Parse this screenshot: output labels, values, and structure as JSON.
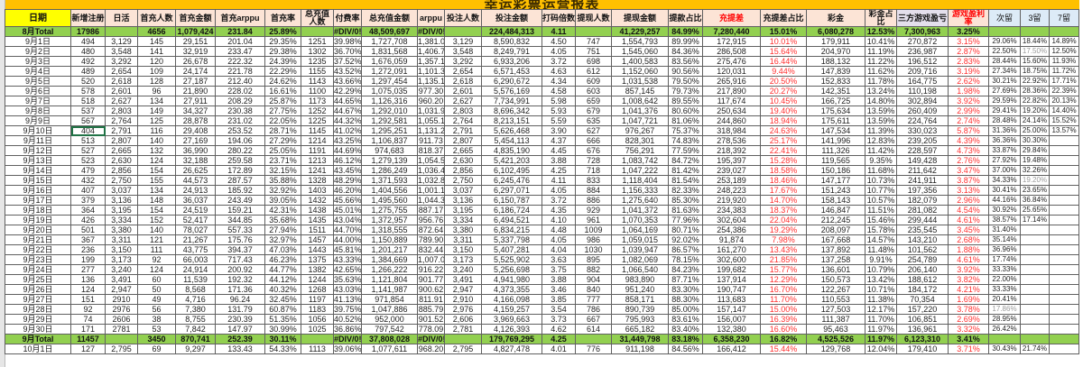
{
  "title": "幸运彩票运营报表",
  "headers": [
    "日期",
    "新增注册",
    "日活",
    "首充人数",
    "首充金额",
    "首充arppu",
    "首充率",
    "总充值人数",
    "付费率",
    "总充值金额",
    "arppu",
    "投注人数",
    "投注金额",
    "打码倍数",
    "提现人数",
    "提现金额",
    "提款占比",
    "充提差",
    "充提差占比",
    "彩金",
    "彩金占比",
    "三方游戏盈亏",
    "游戏盈利率",
    "次留",
    "3留",
    "7留"
  ],
  "colors": {
    "title_band": "#FFC000",
    "header": "#FCE4D6",
    "date_header": "#FFFF00",
    "total_row": "#92D050",
    "negative_red": "#FF3030",
    "retention_header": "#DDEBF7"
  },
  "rows": [
    [
      "8月Total",
      "17986",
      "",
      "4656",
      "1,079,424",
      "231.84",
      "25.89%",
      "",
      "#DIV/0!",
      "48,509,697",
      "#DIV/0!",
      "",
      "224,484,313",
      "4.11",
      "",
      "41,229,257",
      "84.99%",
      "7,280,440",
      "15.01%",
      "6,080,278",
      "12.53%",
      "7,300,963",
      "3.25%",
      "",
      "",
      ""
    ],
    [
      "9月1日",
      "494",
      "3,129",
      "145",
      "29,151",
      "201.04",
      "29.35%",
      "1251",
      "39.98%",
      "1,727,708",
      "1,381.06",
      "3,129",
      "8,590,832",
      "4.50",
      "747",
      "1,554,793",
      "89.99%",
      "172,915",
      "10.01%",
      "179,911",
      "10.41%",
      "270,872",
      "3.15%",
      "29.06%",
      "18.44%",
      "14.89%"
    ],
    [
      "9月2日",
      "480",
      "3,548",
      "141",
      "32,919",
      "233.47",
      "29.38%",
      "1302",
      "36.70%",
      "1,831,568",
      "1,406.73",
      "3,548",
      "8,249,791",
      "4.05",
      "751",
      "1,545,060",
      "84.36%",
      "286,508",
      "15.64%",
      "204,970",
      "11.19%",
      "236,987",
      "2.87%",
      "22.50%",
      "17.50%",
      "12.50%"
    ],
    [
      "9月3日",
      "492",
      "3,292",
      "120",
      "26,678",
      "222.32",
      "24.39%",
      "1235",
      "37.52%",
      "1,676,059",
      "1,357.13",
      "3,292",
      "6,933,206",
      "3.72",
      "698",
      "1,400,583",
      "83.56%",
      "275,476",
      "16.44%",
      "188,132",
      "11.22%",
      "196,512",
      "2.83%",
      "28.44%",
      "15.60%",
      "11.93%"
    ],
    [
      "9月4日",
      "489",
      "2,654",
      "109",
      "24,174",
      "221.78",
      "22.29%",
      "1155",
      "43.52%",
      "1,272,091",
      "1,101.38",
      "2,654",
      "6,571,453",
      "4.63",
      "612",
      "1,152,060",
      "90.56%",
      "120,031",
      "9.44%",
      "147,839",
      "11.62%",
      "209,716",
      "3.19%",
      "27.34%",
      "18.75%",
      "11.72%"
    ],
    [
      "9月5日",
      "520",
      "2,618",
      "128",
      "27,187",
      "212.40",
      "24.62%",
      "1143",
      "43.66%",
      "1,297,454",
      "1,135.13",
      "2,618",
      "6,290,672",
      "4.34",
      "609",
      "1,031,538",
      "79.50%",
      "265,916",
      "20.50%",
      "152,833",
      "11.78%",
      "164,775",
      "2.62%",
      "30.21%",
      "22.92%",
      "17.71%"
    ],
    [
      "9月6日",
      "578",
      "2,601",
      "96",
      "21,890",
      "228.02",
      "16.61%",
      "1100",
      "42.29%",
      "1,075,035",
      "977.30",
      "2,601",
      "5,576,169",
      "4.58",
      "603",
      "857,145",
      "79.73%",
      "217,890",
      "20.27%",
      "142,351",
      "13.24%",
      "110,198",
      "1.98%",
      "27.69%",
      "28.36%",
      "22.39%"
    ],
    [
      "9月7日",
      "518",
      "2,627",
      "134",
      "27,911",
      "208.29",
      "25.87%",
      "1173",
      "44.65%",
      "1,126,316",
      "960.20",
      "2,627",
      "7,734,991",
      "5.98",
      "659",
      "1,008,642",
      "89.55%",
      "117,674",
      "10.45%",
      "166,725",
      "14.80%",
      "302,894",
      "3.92%",
      "29.59%",
      "22.82%",
      "20.13%"
    ],
    [
      "9月8日",
      "537",
      "2,803",
      "149",
      "34,327",
      "230.38",
      "27.75%",
      "1252",
      "44.67%",
      "1,292,010",
      "1,031.96",
      "2,803",
      "8,696,342",
      "5.93",
      "679",
      "1,041,376",
      "80.60%",
      "250,634",
      "19.40%",
      "175,634",
      "13.59%",
      "260,409",
      "2.99%",
      "29.41%",
      "19.20%",
      "14.40%"
    ],
    [
      "9月9日",
      "567",
      "2,764",
      "125",
      "28,878",
      "231.02",
      "22.05%",
      "1225",
      "44.32%",
      "1,292,581",
      "1,055.17",
      "2,764",
      "8,213,151",
      "5.59",
      "635",
      "1,047,721",
      "81.06%",
      "244,860",
      "18.94%",
      "175,611",
      "13.59%",
      "224,764",
      "2.74%",
      "28.48%",
      "24.14%",
      "15.52%"
    ],
    [
      "9月10日",
      "404",
      "2,791",
      "116",
      "29,408",
      "253.52",
      "28.71%",
      "1145",
      "41.02%",
      "1,295,251",
      "1,131.22",
      "2,791",
      "5,626,468",
      "3.90",
      "627",
      "976,267",
      "75.37%",
      "318,984",
      "24.63%",
      "147,534",
      "11.39%",
      "330,023",
      "5.87%",
      "31.36%",
      "25.00%",
      "13.57%"
    ],
    [
      "9月11日",
      "513",
      "2,807",
      "140",
      "27,169",
      "194.06",
      "27.29%",
      "1214",
      "43.25%",
      "1,106,837",
      "911.73",
      "2,807",
      "5,454,113",
      "4.37",
      "666",
      "828,301",
      "74.83%",
      "278,536",
      "25.17%",
      "141,996",
      "12.83%",
      "239,205",
      "4.39%",
      "36.36%",
      "30.30%",
      ""
    ],
    [
      "9月12日",
      "527",
      "2,665",
      "132",
      "36,990",
      "280.22",
      "25.05%",
      "1191",
      "44.69%",
      "974,683",
      "818.37",
      "2,665",
      "4,835,190",
      "4.45",
      "676",
      "756,291",
      "77.59%",
      "218,392",
      "22.41%",
      "111,326",
      "11.42%",
      "228,597",
      "4.73%",
      "33.87%",
      "29.84%",
      ""
    ],
    [
      "9月13日",
      "523",
      "2,630",
      "124",
      "32,188",
      "259.58",
      "23.71%",
      "1213",
      "46.12%",
      "1,279,139",
      "1,054.53",
      "2,630",
      "5,421,203",
      "3.88",
      "728",
      "1,083,742",
      "84.72%",
      "195,397",
      "15.28%",
      "119,565",
      "9.35%",
      "149,428",
      "2.76%",
      "27.92%",
      "19.48%",
      ""
    ],
    [
      "9月14日",
      "479",
      "2,856",
      "154",
      "26,625",
      "172.89",
      "32.15%",
      "1241",
      "43.45%",
      "1,286,249",
      "1,036.46",
      "2,856",
      "6,102,495",
      "4.25",
      "718",
      "1,047,222",
      "81.42%",
      "239,027",
      "18.58%",
      "150,186",
      "11.68%",
      "211,642",
      "3.47%",
      "37.00%",
      "32.26%",
      ""
    ],
    [
      "9月15日",
      "432",
      "2,750",
      "155",
      "44,573",
      "287.57",
      "35.88%",
      "1328",
      "48.29%",
      "1,371,593",
      "1,032.83",
      "2,750",
      "6,245,476",
      "4.11",
      "833",
      "1,118,404",
      "81.54%",
      "253,189",
      "18.46%",
      "147,177",
      "10.73%",
      "241,911",
      "3.87%",
      "34.33%",
      "19.20%",
      ""
    ],
    [
      "9月16日",
      "407",
      "3,037",
      "134",
      "24,913",
      "185.92",
      "32.92%",
      "1403",
      "46.20%",
      "1,404,556",
      "1,001.11",
      "3,037",
      "6,297,071",
      "4.05",
      "884",
      "1,156,333",
      "82.33%",
      "248,223",
      "17.67%",
      "151,243",
      "10.77%",
      "197,356",
      "3.13%",
      "30.41%",
      "23.65%",
      ""
    ],
    [
      "9月17日",
      "379",
      "3,136",
      "148",
      "36,037",
      "243.49",
      "39.05%",
      "1432",
      "45.66%",
      "1,495,560",
      "1,044.39",
      "3,136",
      "6,150,787",
      "3.72",
      "886",
      "1,275,640",
      "85.30%",
      "219,920",
      "14.70%",
      "158,143",
      "10.57%",
      "182,079",
      "2.96%",
      "44.16%",
      "36.84%",
      ""
    ],
    [
      "9月18日",
      "364",
      "3,195",
      "154",
      "24,519",
      "159.21",
      "42.31%",
      "1438",
      "45.01%",
      "1,275,755",
      "887.17",
      "3,195",
      "6,186,724",
      "4.35",
      "929",
      "1,041,372",
      "81.63%",
      "234,383",
      "18.37%",
      "146,847",
      "11.51%",
      "281,082",
      "4.54%",
      "30.92%",
      "25.65%",
      ""
    ],
    [
      "9月19日",
      "426",
      "3,334",
      "152",
      "52,417",
      "344.85",
      "35.68%",
      "1435",
      "43.04%",
      "1,372,957",
      "956.76",
      "3,334",
      "6,494,521",
      "4.10",
      "961",
      "1,070,353",
      "77.96%",
      "302,604",
      "22.04%",
      "212,245",
      "15.46%",
      "299,444",
      "4.61%",
      "38.57%",
      "17.14%",
      ""
    ],
    [
      "9月20日",
      "501",
      "3,380",
      "140",
      "78,027",
      "557.33",
      "27.94%",
      "1511",
      "44.70%",
      "1,318,555",
      "872.64",
      "3,380",
      "6,834,215",
      "4.48",
      "1009",
      "1,064,169",
      "80.71%",
      "254,386",
      "19.29%",
      "208,097",
      "15.78%",
      "235,545",
      "3.45%",
      "31.40%",
      "",
      ""
    ],
    [
      "9月21日",
      "367",
      "3,311",
      "121",
      "21,267",
      "175.76",
      "32.97%",
      "1457",
      "44.00%",
      "1,150,889",
      "789.90",
      "3,311",
      "5,337,798",
      "4.05",
      "986",
      "1,059,015",
      "92.02%",
      "91,874",
      "7.98%",
      "167,668",
      "14.57%",
      "143,210",
      "2.68%",
      "35.14%",
      "",
      ""
    ],
    [
      "9月22日",
      "236",
      "3,150",
      "111",
      "43,775",
      "394.37",
      "47.03%",
      "1443",
      "45.81%",
      "1,201,217",
      "832.44",
      "3,150",
      "5,407,281",
      "4.04",
      "1030",
      "1,039,947",
      "86.57%",
      "161,270",
      "13.43%",
      "137,892",
      "11.48%",
      "101,562",
      "1.88%",
      "36.96%",
      "",
      ""
    ],
    [
      "9月23日",
      "199",
      "3,173",
      "92",
      "66,003",
      "717.43",
      "46.23%",
      "1375",
      "43.33%",
      "1,384,669",
      "1,007.03",
      "3,173",
      "5,525,902",
      "3.63",
      "895",
      "1,082,069",
      "78.15%",
      "302,600",
      "21.85%",
      "137,258",
      "9.91%",
      "254,789",
      "4.61%",
      "17.74%",
      "",
      ""
    ],
    [
      "9月24日",
      "277",
      "3,240",
      "124",
      "24,914",
      "200.92",
      "44.77%",
      "1382",
      "42.65%",
      "1,266,222",
      "916.22",
      "3,240",
      "5,256,698",
      "3.75",
      "882",
      "1,066,540",
      "84.23%",
      "199,682",
      "15.77%",
      "136,601",
      "10.79%",
      "206,140",
      "3.92%",
      "33.33%",
      "",
      ""
    ],
    [
      "9月25日",
      "136",
      "3,491",
      "60",
      "11,539",
      "192.32",
      "44.12%",
      "1244",
      "35.63%",
      "1,121,804",
      "901.77",
      "3,491",
      "4,941,980",
      "3.88",
      "904",
      "983,890",
      "87.71%",
      "137,914",
      "12.29%",
      "150,573",
      "13.42%",
      "188,612",
      "3.82%",
      "22.00%",
      "",
      ""
    ],
    [
      "9月26日",
      "124",
      "2,947",
      "50",
      "8,568",
      "171.36",
      "40.32%",
      "1268",
      "43.03%",
      "1,141,987",
      "900.62",
      "2,947",
      "4,373,355",
      "3.46",
      "840",
      "951,240",
      "83.30%",
      "190,747",
      "16.70%",
      "122,267",
      "10.71%",
      "184,172",
      "4.21%",
      "33.33%",
      "",
      ""
    ],
    [
      "9月27日",
      "151",
      "2910",
      "49",
      "4,716",
      "96.24",
      "32.45%",
      "1197",
      "41.13%",
      "971,854",
      "811.91",
      "2,910",
      "4,166,098",
      "3.85",
      "777",
      "858,171",
      "88.30%",
      "113,683",
      "11.70%",
      "110,553",
      "11.38%",
      "70,354",
      "1.69%",
      "20.41%",
      "",
      ""
    ],
    [
      "9月28日",
      "92",
      "2976",
      "56",
      "7,380",
      "131.79",
      "60.87%",
      "1183",
      "39.75%",
      "1,047,886",
      "885.79",
      "2,976",
      "4,159,257",
      "3.54",
      "786",
      "890,739",
      "85.00%",
      "157,147",
      "15.00%",
      "127,503",
      "12.17%",
      "157,220",
      "3.78%",
      "17.86%",
      "",
      ""
    ],
    [
      "9月29日",
      "74",
      "2606",
      "38",
      "8,755",
      "230.39",
      "51.35%",
      "1056",
      "40.52%",
      "952,000",
      "901.52",
      "2,606",
      "3,969,663",
      "3.73",
      "667",
      "795,993",
      "83.61%",
      "156,007",
      "16.39%",
      "111,387",
      "11.70%",
      "106,851",
      "2.69%",
      "28.95%",
      "",
      ""
    ],
    [
      "9月30日",
      "171",
      "2781",
      "53",
      "7,842",
      "147.97",
      "30.99%",
      "1025",
      "36.86%",
      "797,542",
      "778.09",
      "2,781",
      "4,126,393",
      "4.62",
      "614",
      "665,182",
      "83.40%",
      "132,380",
      "16.60%",
      "95,463",
      "11.97%",
      "136,961",
      "3.32%",
      "26.42%",
      "",
      ""
    ],
    [
      "9月Total",
      "11457",
      "",
      "3450",
      "870,741",
      "252.39",
      "30.11%",
      "",
      "#DIV/0!",
      "37,808,028",
      "#DIV/0!",
      "",
      "179,769,295",
      "4.25",
      "",
      "31,449,798",
      "83.18%",
      "6,358,230",
      "16.82%",
      "4,525,526",
      "11.97%",
      "6,123,310",
      "3.41%",
      "",
      "",
      ""
    ],
    [
      "10月1日",
      "127",
      "2,795",
      "69",
      "9,297",
      "133.43",
      "54.33%",
      "1113",
      "39.06%",
      "1,077,611",
      "968.20",
      "2,795",
      "4,827,478",
      "4.01",
      "776",
      "911,198",
      "84.56%",
      "166,412",
      "15.44%",
      "129,768",
      "12.04%",
      "179,410",
      "3.71%",
      "30.43%",
      "21.74%",
      ""
    ]
  ]
}
